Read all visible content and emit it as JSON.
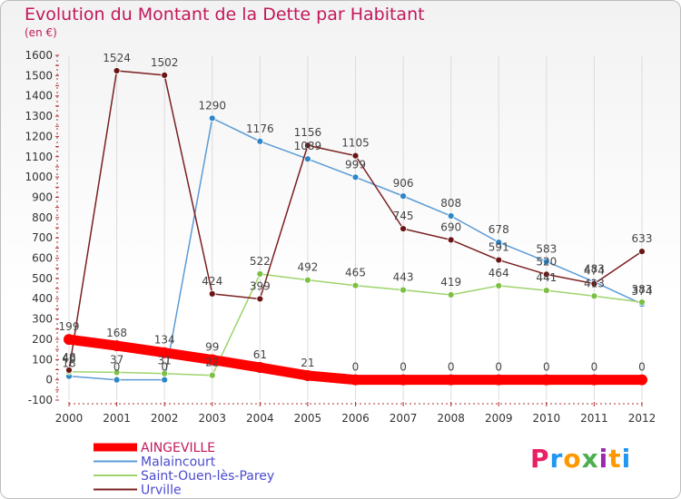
{
  "title": "Evolution du Montant de la Dette par Habitant",
  "subtitle": "(en €)",
  "logo_text": "Proxiti",
  "logo_colors": [
    "#e91e63",
    "#2196f3",
    "#ff9800",
    "#4caf50",
    "#9c27b0",
    "#ff9800",
    "#2196f3"
  ],
  "chart_data": {
    "type": "line",
    "x": [
      2000,
      2001,
      2002,
      2003,
      2004,
      2005,
      2006,
      2007,
      2008,
      2009,
      2010,
      2011,
      2012
    ],
    "ylim": [
      -100,
      1600
    ],
    "yticks": [
      -100,
      0,
      100,
      200,
      300,
      400,
      500,
      600,
      700,
      800,
      900,
      1000,
      1100,
      1200,
      1300,
      1400,
      1500,
      1600
    ],
    "grid": "vertical",
    "legend": "bottom-left",
    "series": [
      {
        "name": "AINGEVILLE",
        "color": "#ff0000",
        "marker": "#ff0000",
        "values": [
          199,
          168,
          134,
          99,
          61,
          21,
          0,
          0,
          0,
          0,
          0,
          0,
          0
        ],
        "labels": [
          "199",
          "168",
          "134",
          "99",
          "61",
          "21",
          "0",
          "0",
          "0",
          "0",
          "0",
          "0",
          "0"
        ]
      },
      {
        "name": "Malaincourt",
        "color": "#5b9bd5",
        "marker": "#2e86c9",
        "values": [
          18,
          0,
          0,
          1290,
          1176,
          1089,
          999,
          906,
          808,
          678,
          583,
          483,
          374
        ],
        "labels": [
          "18",
          "0",
          "0",
          "1290",
          "1176",
          "1089",
          "999",
          "906",
          "808",
          "678",
          "583",
          "483",
          "374"
        ]
      },
      {
        "name": "Saint-Ouen-lès-Parey",
        "color": "#9ed46b",
        "marker": "#7cc043",
        "values": [
          40,
          37,
          31,
          22,
          522,
          492,
          465,
          443,
          419,
          464,
          441,
          413,
          383
        ],
        "labels": [
          "40",
          "37",
          "31",
          "22",
          "522",
          "492",
          "465",
          "443",
          "419",
          "464",
          "441",
          "413",
          "383"
        ]
      },
      {
        "name": "Urville",
        "color": "#7a1f1f",
        "marker": "#6b1515",
        "values": [
          48,
          1524,
          1502,
          424,
          399,
          1156,
          1105,
          745,
          690,
          591,
          520,
          474,
          633
        ],
        "labels": [
          "48",
          "1524",
          "1502",
          "424",
          "399",
          "1156",
          "1105",
          "745",
          "690",
          "591",
          "520",
          "474",
          "633"
        ]
      }
    ]
  }
}
